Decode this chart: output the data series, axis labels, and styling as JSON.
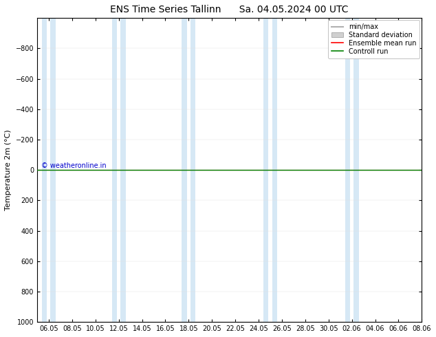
{
  "title_left": "ENS Time Series Tallinn",
  "title_right": "Sa. 04.05.2024 00 UTC",
  "ylabel": "Temperature 2m (°C)",
  "ylim": [
    -1000,
    1000
  ],
  "yticks": [
    -800,
    -600,
    -400,
    -200,
    0,
    200,
    400,
    600,
    800,
    1000
  ],
  "xtick_labels": [
    "06.05",
    "08.05",
    "10.05",
    "12.05",
    "14.05",
    "16.05",
    "18.05",
    "20.05",
    "22.05",
    "24.05",
    "26.05",
    "28.05",
    "30.05",
    "02.06",
    "04.06",
    "06.06",
    "08.06"
  ],
  "n_date_points": 17,
  "bg_color": "#ffffff",
  "plot_bg_color": "#ffffff",
  "band_color": "#d6e8f5",
  "green_line_y": 0,
  "copyright_text": "© weatheronline.in",
  "copyright_color": "#0000cc",
  "legend_labels": [
    "min/max",
    "Standard deviation",
    "Ensemble mean run",
    "Controll run"
  ],
  "minmax_color": "#b0b0b0",
  "std_color": "#d0d0d0",
  "ensemble_color": "#ff0000",
  "control_color": "#008000",
  "title_fontsize": 10,
  "axis_label_fontsize": 8,
  "tick_fontsize": 7,
  "legend_fontsize": 7
}
